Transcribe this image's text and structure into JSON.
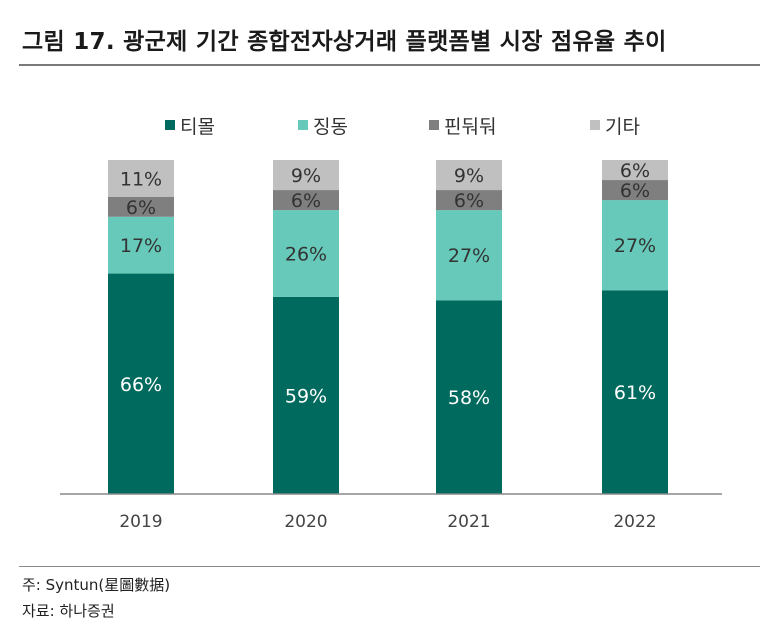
{
  "title": "그림 17. 광군제 기간 종합전자상거래 플랫폼별 시장 점유율 추이",
  "note": "주: Syntun(星圖數据)",
  "source": "자료: 하나증권",
  "chart_data": {
    "type": "bar",
    "stacked": true,
    "categories": [
      "2019",
      "2020",
      "2021",
      "2022"
    ],
    "series": [
      {
        "name": "티몰",
        "color": "#006a5e",
        "values": [
          66,
          59,
          58,
          61
        ],
        "labels": [
          "66%",
          "59%",
          "58%",
          "61%"
        ]
      },
      {
        "name": "징동",
        "color": "#66c9b9",
        "values": [
          17,
          26,
          27,
          27
        ],
        "labels": [
          "17%",
          "26%",
          "27%",
          "27%"
        ]
      },
      {
        "name": "핀둬둬",
        "color": "#7f7f7f",
        "values": [
          6,
          6,
          6,
          6
        ],
        "labels": [
          "6%",
          "6%",
          "6%",
          "6%"
        ]
      },
      {
        "name": "기타",
        "color": "#c0c0c0",
        "values": [
          11,
          9,
          9,
          6
        ],
        "labels": [
          "11%",
          "9%",
          "9%",
          "6%"
        ]
      }
    ],
    "ylim": [
      0,
      100
    ],
    "legend_position": "top",
    "grid": false
  }
}
